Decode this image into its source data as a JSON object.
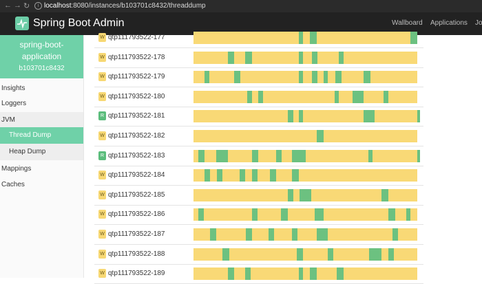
{
  "browser": {
    "url_host": "localhost",
    "url_rest": ":8080/instances/b103701c8432/threaddump"
  },
  "navbar": {
    "brand": "Spring Boot Admin",
    "links": [
      "Wallboard",
      "Applications",
      "Jo"
    ]
  },
  "sidebar": {
    "app_name": "spring-boot-application",
    "app_id": "b103701c8432",
    "items": [
      {
        "label": "Insights"
      },
      {
        "label": "Loggers"
      },
      {
        "label": "JVM"
      },
      {
        "label": "Thread Dump"
      },
      {
        "label": "Heap Dump"
      },
      {
        "label": "Mappings"
      },
      {
        "label": "Caches"
      }
    ]
  },
  "colors": {
    "waiting": "#f9d976",
    "runnable": "#6cc180",
    "accent": "#6fd1a8"
  },
  "threads": [
    {
      "state": "W",
      "name": "qtp111793522-177",
      "runs": [
        [
          0.47,
          0.49
        ],
        [
          0.52,
          0.55
        ],
        [
          0.97,
          1.0
        ]
      ]
    },
    {
      "state": "W",
      "name": "qtp111793522-178",
      "runs": [
        [
          0.155,
          0.18
        ],
        [
          0.23,
          0.26
        ],
        [
          0.47,
          0.49
        ],
        [
          0.53,
          0.555
        ],
        [
          0.65,
          0.67
        ]
      ]
    },
    {
      "state": "W",
      "name": "qtp111793522-179",
      "runs": [
        [
          0.05,
          0.07
        ],
        [
          0.18,
          0.21
        ],
        [
          0.47,
          0.49
        ],
        [
          0.53,
          0.555
        ],
        [
          0.58,
          0.6
        ],
        [
          0.635,
          0.66
        ],
        [
          0.76,
          0.79
        ]
      ]
    },
    {
      "state": "W",
      "name": "qtp111793522-180",
      "runs": [
        [
          0.24,
          0.26
        ],
        [
          0.29,
          0.31
        ],
        [
          0.63,
          0.65
        ],
        [
          0.71,
          0.76
        ],
        [
          0.85,
          0.87
        ]
      ]
    },
    {
      "state": "R",
      "name": "qtp111793522-181",
      "runs": [
        [
          0.42,
          0.445
        ],
        [
          0.47,
          0.49
        ],
        [
          0.76,
          0.81
        ]
      ],
      "cap": true
    },
    {
      "state": "W",
      "name": "qtp111793522-182",
      "runs": [
        [
          0.55,
          0.58
        ]
      ]
    },
    {
      "state": "R",
      "name": "qtp111793522-183",
      "runs": [
        [
          0.02,
          0.05
        ],
        [
          0.1,
          0.155
        ],
        [
          0.26,
          0.29
        ],
        [
          0.37,
          0.395
        ],
        [
          0.44,
          0.5
        ],
        [
          0.78,
          0.8
        ]
      ],
      "cap": true
    },
    {
      "state": "W",
      "name": "qtp111793522-184",
      "runs": [
        [
          0.05,
          0.075
        ],
        [
          0.105,
          0.13
        ],
        [
          0.205,
          0.23
        ],
        [
          0.26,
          0.285
        ],
        [
          0.34,
          0.37
        ],
        [
          0.44,
          0.47
        ]
      ]
    },
    {
      "state": "W",
      "name": "qtp111793522-185",
      "runs": [
        [
          0.42,
          0.445
        ],
        [
          0.475,
          0.525
        ],
        [
          0.84,
          0.87
        ]
      ]
    },
    {
      "state": "W",
      "name": "qtp111793522-186",
      "runs": [
        [
          0.02,
          0.045
        ],
        [
          0.26,
          0.285
        ],
        [
          0.39,
          0.42
        ],
        [
          0.54,
          0.58
        ],
        [
          0.87,
          0.9
        ],
        [
          0.95,
          0.97
        ]
      ]
    },
    {
      "state": "W",
      "name": "qtp111793522-187",
      "runs": [
        [
          0.075,
          0.1
        ],
        [
          0.235,
          0.26
        ],
        [
          0.335,
          0.36
        ],
        [
          0.44,
          0.465
        ],
        [
          0.55,
          0.6
        ],
        [
          0.89,
          0.915
        ]
      ]
    },
    {
      "state": "W",
      "name": "qtp111793522-188",
      "runs": [
        [
          0.13,
          0.16
        ],
        [
          0.46,
          0.49
        ],
        [
          0.6,
          0.625
        ],
        [
          0.785,
          0.84
        ],
        [
          0.87,
          0.895
        ]
      ]
    },
    {
      "state": "W",
      "name": "qtp111793522-189",
      "runs": [
        [
          0.155,
          0.18
        ],
        [
          0.23,
          0.255
        ],
        [
          0.47,
          0.49
        ],
        [
          0.52,
          0.55
        ],
        [
          0.64,
          0.67
        ]
      ]
    }
  ]
}
